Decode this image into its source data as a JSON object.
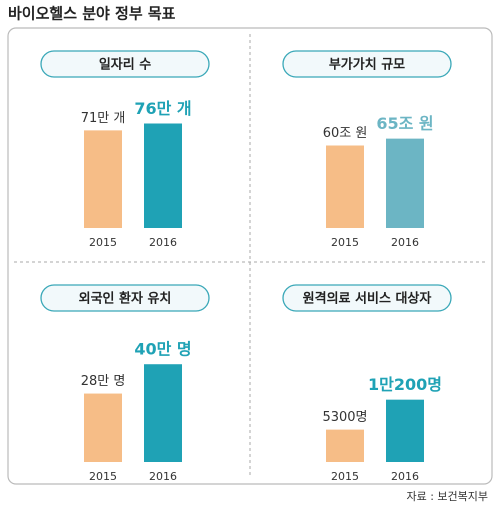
{
  "title": "바이오헬스 분야 정부 목표",
  "source": "자료 : 보건복지부",
  "chart_data": [
    {
      "type": "bar",
      "title": "일자리 수",
      "categories": [
        "2015",
        "2016"
      ],
      "values": [
        71,
        76
      ],
      "value_labels": [
        "71만 개",
        "76만 개"
      ],
      "colors": [
        "#f6bd87",
        "#1fa2b5"
      ],
      "ylim": [
        0,
        80
      ]
    },
    {
      "type": "bar",
      "title": "부가가치 규모",
      "categories": [
        "2015",
        "2016"
      ],
      "values": [
        60,
        65
      ],
      "value_labels": [
        "60조 원",
        "65조 원"
      ],
      "colors": [
        "#f6bd87",
        "#6cb5c4"
      ],
      "ylim": [
        0,
        80
      ]
    },
    {
      "type": "bar",
      "title": "외국인 환자 유치",
      "categories": [
        "2015",
        "2016"
      ],
      "values": [
        28,
        40
      ],
      "value_labels": [
        "28만 명",
        "40만 명"
      ],
      "colors": [
        "#f6bd87",
        "#1fa2b5"
      ],
      "ylim": [
        0,
        45
      ]
    },
    {
      "type": "bar",
      "title": "원격의료 서비스 대상자",
      "categories": [
        "2015",
        "2016"
      ],
      "values": [
        5300,
        10200
      ],
      "value_labels": [
        "5300명",
        "1만200명"
      ],
      "colors": [
        "#f6bd87",
        "#1fa2b5"
      ],
      "ylim": [
        0,
        18000
      ]
    }
  ]
}
